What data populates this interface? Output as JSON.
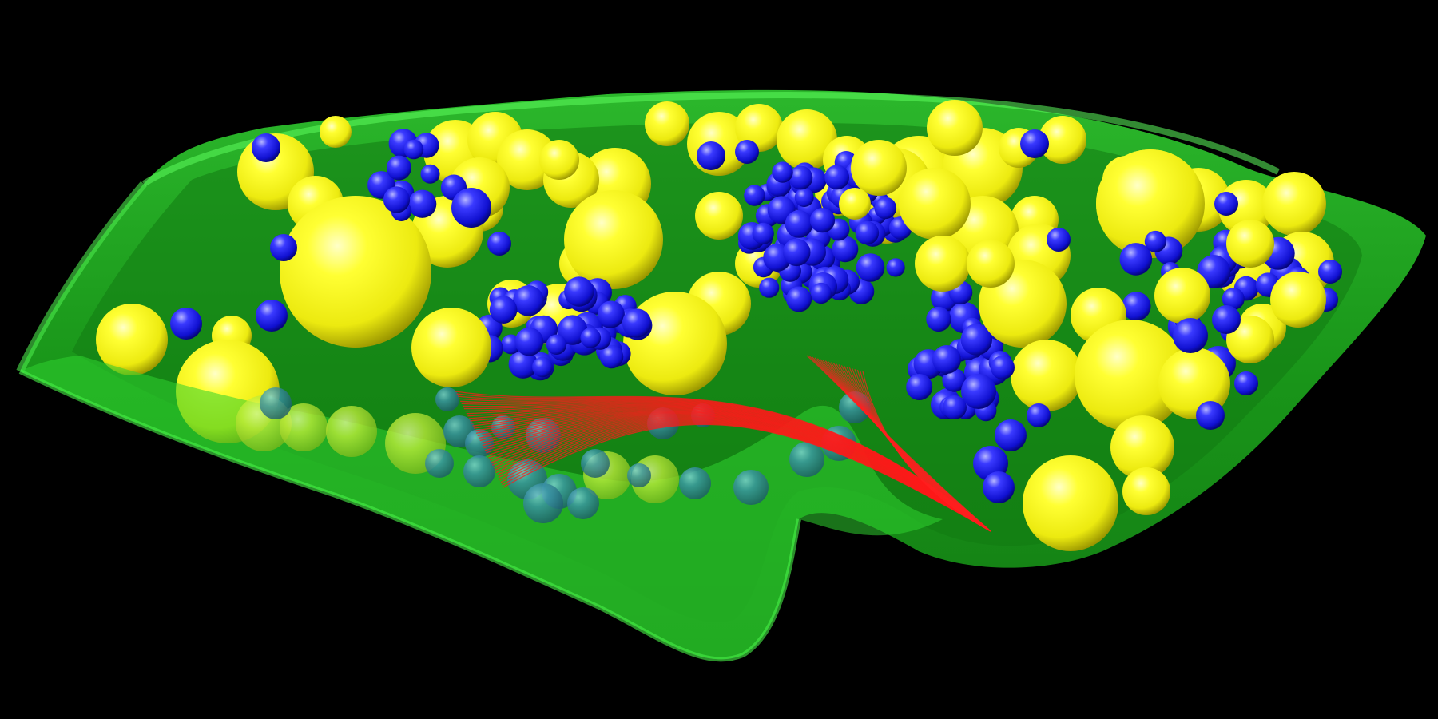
{
  "scene": {
    "background_color": "#000000",
    "objects": [
      {
        "name": "cell-membrane-surface",
        "description_color": "#22c522"
      },
      {
        "name": "yellow-granule-spheres",
        "description_color": "#f4f020"
      },
      {
        "name": "blue-vesicle-spheres",
        "description_color": "#1a1ae6"
      },
      {
        "name": "red-filament-bundle",
        "description_color": "#e41010"
      }
    ]
  }
}
